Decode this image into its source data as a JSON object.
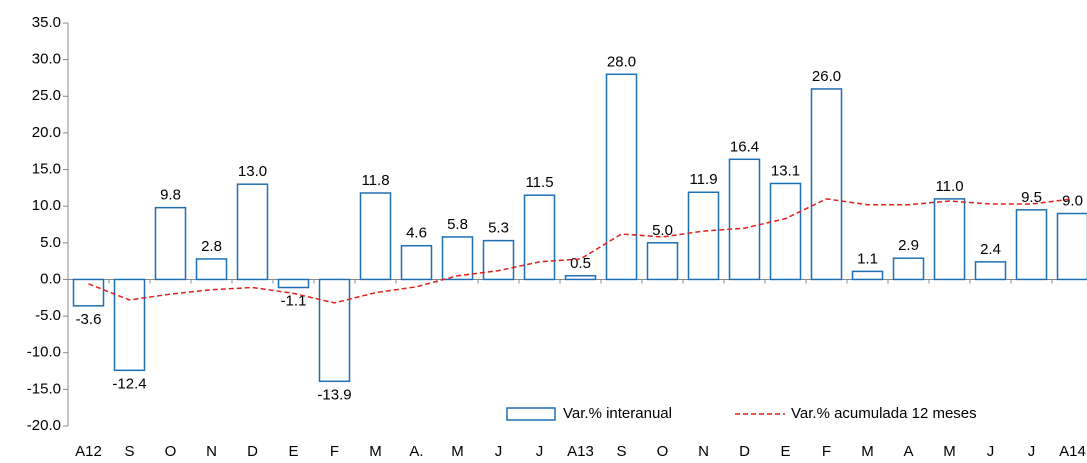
{
  "chart_data": {
    "type": "bar",
    "categories": [
      "A12",
      "S",
      "O",
      "N",
      "D",
      "E",
      "F",
      "M",
      "A.",
      "M",
      "J",
      "J",
      "A13",
      "S",
      "O",
      "N",
      "D",
      "E",
      "F",
      "M",
      "A",
      "M",
      "J",
      "J",
      "A14"
    ],
    "series": [
      {
        "name": "Var.% interanual",
        "type": "bar",
        "color": "#1f6fb5",
        "values": [
          -3.6,
          -12.4,
          9.8,
          2.8,
          13.0,
          -1.1,
          -13.9,
          11.8,
          4.6,
          5.8,
          5.3,
          11.5,
          0.5,
          28.0,
          5.0,
          11.9,
          16.4,
          13.1,
          26.0,
          1.1,
          2.9,
          11.0,
          2.4,
          9.5,
          9.0
        ],
        "value_labels": [
          "-3.6",
          "-12.4",
          "9.8",
          "2.8",
          "13.0",
          "-1.1",
          "-13.9",
          "11.8",
          "4.6",
          "5.8",
          "5.3",
          "11.5",
          "0.5",
          "28.0",
          "5.0",
          "11.9",
          "16.4",
          "13.1",
          "26.0",
          "1.1",
          "2.9",
          "11.0",
          "2.4",
          "9.5",
          "9.0"
        ]
      },
      {
        "name": "Var.% acumulada 12 meses",
        "type": "line",
        "color": "#e0201b",
        "values": [
          -0.6,
          -2.8,
          -2.0,
          -1.4,
          -1.1,
          -1.9,
          -3.2,
          -1.8,
          -1.0,
          0.5,
          1.2,
          2.4,
          2.8,
          6.2,
          5.8,
          6.6,
          7.0,
          8.3,
          11.0,
          10.2,
          10.2,
          10.7,
          10.3,
          10.3,
          11.0
        ]
      }
    ],
    "ylim": [
      -20,
      35
    ],
    "yticks": [
      {
        "value": -20,
        "label": "-20.0"
      },
      {
        "value": -15,
        "label": "-15.0"
      },
      {
        "value": -10,
        "label": "-10.0"
      },
      {
        "value": -5,
        "label": "-5.0"
      },
      {
        "value": 0,
        "label": "0.0"
      },
      {
        "value": 5,
        "label": "5.0"
      },
      {
        "value": 10,
        "label": "10.0"
      },
      {
        "value": 15,
        "label": "15.0"
      },
      {
        "value": 20,
        "label": "20.0"
      },
      {
        "value": 25,
        "label": "25.0"
      },
      {
        "value": 30,
        "label": "30.0"
      },
      {
        "value": 35,
        "label": "35.0"
      }
    ],
    "grid": false
  }
}
